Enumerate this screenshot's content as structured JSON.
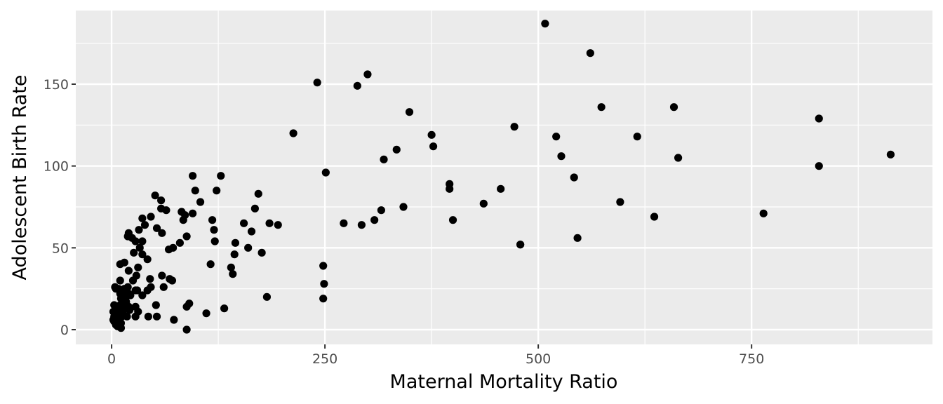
{
  "chart_data": {
    "type": "scatter",
    "xlabel": "Maternal Mortality Ratio",
    "ylabel": "Adolescent Birth Rate",
    "xlim": [
      -42,
      962
    ],
    "ylim": [
      -9,
      195
    ],
    "x_ticks": [
      0,
      250,
      500,
      750
    ],
    "x_tick_labels": [
      "0",
      "250",
      "500",
      "750"
    ],
    "y_ticks": [
      0,
      50,
      100,
      150
    ],
    "y_tick_labels": [
      "0",
      "50",
      "100",
      "150"
    ],
    "grid": true,
    "panel_background": "#ebebeb",
    "point_color": "#000000",
    "points": [
      [
        508,
        187
      ],
      [
        561,
        169
      ],
      [
        241,
        151
      ],
      [
        300,
        156
      ],
      [
        288,
        149
      ],
      [
        349,
        133
      ],
      [
        574,
        136
      ],
      [
        659,
        136
      ],
      [
        829,
        129
      ],
      [
        472,
        124
      ],
      [
        213,
        120
      ],
      [
        375,
        119
      ],
      [
        521,
        118
      ],
      [
        616,
        118
      ],
      [
        377,
        112
      ],
      [
        334,
        110
      ],
      [
        319,
        104
      ],
      [
        527,
        106
      ],
      [
        664,
        105
      ],
      [
        913,
        107
      ],
      [
        251,
        96
      ],
      [
        829,
        100
      ],
      [
        542,
        93
      ],
      [
        396,
        89
      ],
      [
        396,
        86
      ],
      [
        456,
        86
      ],
      [
        436,
        77
      ],
      [
        342,
        75
      ],
      [
        596,
        78
      ],
      [
        764,
        71
      ],
      [
        316,
        73
      ],
      [
        400,
        67
      ],
      [
        308,
        67
      ],
      [
        272,
        65
      ],
      [
        293,
        64
      ],
      [
        636,
        69
      ],
      [
        479,
        52
      ],
      [
        479,
        52
      ],
      [
        546,
        56
      ],
      [
        248,
        39
      ],
      [
        249,
        28
      ],
      [
        248,
        19
      ],
      [
        195,
        64
      ],
      [
        185,
        65
      ],
      [
        172,
        83
      ],
      [
        168,
        74
      ],
      [
        155,
        65
      ],
      [
        164,
        60
      ],
      [
        176,
        47
      ],
      [
        160,
        50
      ],
      [
        145,
        53
      ],
      [
        144,
        46
      ],
      [
        140,
        38
      ],
      [
        142,
        34
      ],
      [
        182,
        20
      ],
      [
        132,
        13
      ],
      [
        128,
        94
      ],
      [
        123,
        85
      ],
      [
        118,
        67
      ],
      [
        120,
        61
      ],
      [
        121,
        54
      ],
      [
        116,
        40
      ],
      [
        111,
        10
      ],
      [
        95,
        94
      ],
      [
        98,
        85
      ],
      [
        104,
        78
      ],
      [
        95,
        71
      ],
      [
        82,
        72
      ],
      [
        84,
        67
      ],
      [
        86,
        70
      ],
      [
        88,
        57
      ],
      [
        80,
        53
      ],
      [
        72,
        50
      ],
      [
        67,
        49
      ],
      [
        68,
        31
      ],
      [
        71,
        30
      ],
      [
        73,
        6
      ],
      [
        88,
        14
      ],
      [
        91,
        16
      ],
      [
        88,
        0
      ],
      [
        51,
        82
      ],
      [
        58,
        79
      ],
      [
        58,
        74
      ],
      [
        64,
        73
      ],
      [
        46,
        69
      ],
      [
        36,
        68
      ],
      [
        53,
        62
      ],
      [
        39,
        64
      ],
      [
        32,
        61
      ],
      [
        59,
        59
      ],
      [
        20,
        59
      ],
      [
        19,
        57
      ],
      [
        28,
        54
      ],
      [
        36,
        54
      ],
      [
        24,
        56
      ],
      [
        33,
        50
      ],
      [
        36,
        46
      ],
      [
        42,
        43
      ],
      [
        26,
        47
      ],
      [
        20,
        36
      ],
      [
        31,
        38
      ],
      [
        10,
        40
      ],
      [
        15,
        41
      ],
      [
        59,
        33
      ],
      [
        61,
        26
      ],
      [
        45,
        31
      ],
      [
        46,
        26
      ],
      [
        42,
        24
      ],
      [
        36,
        21
      ],
      [
        43,
        8
      ],
      [
        53,
        8
      ],
      [
        52,
        15
      ],
      [
        29,
        33
      ],
      [
        25,
        30
      ],
      [
        28,
        24
      ],
      [
        30,
        24
      ],
      [
        28,
        14
      ],
      [
        31,
        11
      ],
      [
        28,
        8
      ],
      [
        22,
        21
      ],
      [
        20,
        22
      ],
      [
        17,
        20
      ],
      [
        15,
        25
      ],
      [
        19,
        26
      ],
      [
        17,
        17
      ],
      [
        20,
        14
      ],
      [
        18,
        8
      ],
      [
        13,
        23
      ],
      [
        11,
        19
      ],
      [
        10,
        30
      ],
      [
        8,
        25
      ],
      [
        5,
        25
      ],
      [
        4,
        26
      ],
      [
        7,
        13
      ],
      [
        8,
        11
      ],
      [
        10,
        15
      ],
      [
        12,
        8
      ],
      [
        14,
        13
      ],
      [
        3,
        15
      ],
      [
        2,
        11
      ],
      [
        3,
        8
      ],
      [
        2,
        6
      ],
      [
        3,
        5
      ],
      [
        5,
        3
      ],
      [
        7,
        2
      ],
      [
        9,
        6
      ],
      [
        11,
        4
      ],
      [
        11,
        1
      ],
      [
        6,
        9
      ],
      [
        8,
        4
      ],
      [
        13,
        10
      ],
      [
        16,
        18
      ],
      [
        21,
        12
      ],
      [
        10,
        22
      ]
    ]
  }
}
